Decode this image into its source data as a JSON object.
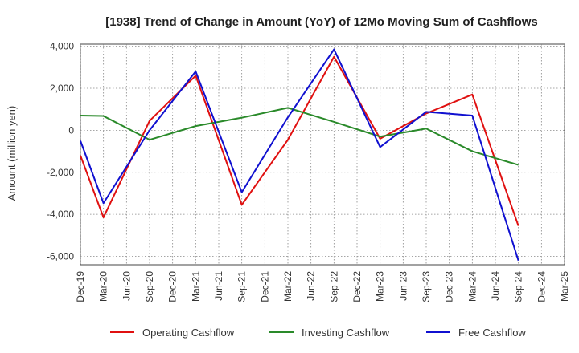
{
  "chart_data": {
    "type": "line",
    "title": "[1938]  Trend of Change in Amount (YoY) of 12Mo Moving Sum of Cashflows",
    "xlabel": "",
    "ylabel": "Amount (million yen)",
    "ylim": [
      -6400,
      4100
    ],
    "yticks": [
      4000,
      2000,
      0,
      -2000,
      -4000,
      -6000
    ],
    "ytick_labels": [
      "4,000",
      "2,000",
      "0",
      "-2,000",
      "-4,000",
      "-6,000"
    ],
    "categories": [
      "Dec-19",
      "Mar-20",
      "Jun-20",
      "Sep-20",
      "Dec-20",
      "Mar-21",
      "Jun-21",
      "Sep-21",
      "Dec-21",
      "Mar-22",
      "Jun-22",
      "Sep-22",
      "Dec-22",
      "Mar-23",
      "Jun-23",
      "Sep-23",
      "Dec-23",
      "Mar-24",
      "Jun-24",
      "Sep-24",
      "Dec-24",
      "Mar-25"
    ],
    "grid": true,
    "legend_position": "bottom",
    "series": [
      {
        "name": "Operating Cashflow",
        "color": "#e01010",
        "values": [
          -1200,
          -4150,
          null,
          450,
          null,
          2600,
          null,
          -3550,
          null,
          -450,
          null,
          3500,
          null,
          -400,
          null,
          800,
          null,
          1700,
          null,
          -4550,
          null,
          null
        ]
      },
      {
        "name": "Investing Cashflow",
        "color": "#2a8a2a",
        "values": [
          700,
          680,
          null,
          -450,
          null,
          200,
          null,
          600,
          null,
          1070,
          null,
          400,
          null,
          -300,
          null,
          80,
          null,
          -1000,
          null,
          -1650,
          null,
          null
        ]
      },
      {
        "name": "Free Cashflow",
        "color": "#1010d0",
        "values": [
          -500,
          -3470,
          null,
          0,
          null,
          2800,
          null,
          -2950,
          null,
          620,
          null,
          3850,
          null,
          -800,
          null,
          880,
          null,
          700,
          null,
          -6200,
          null,
          null
        ]
      }
    ]
  }
}
